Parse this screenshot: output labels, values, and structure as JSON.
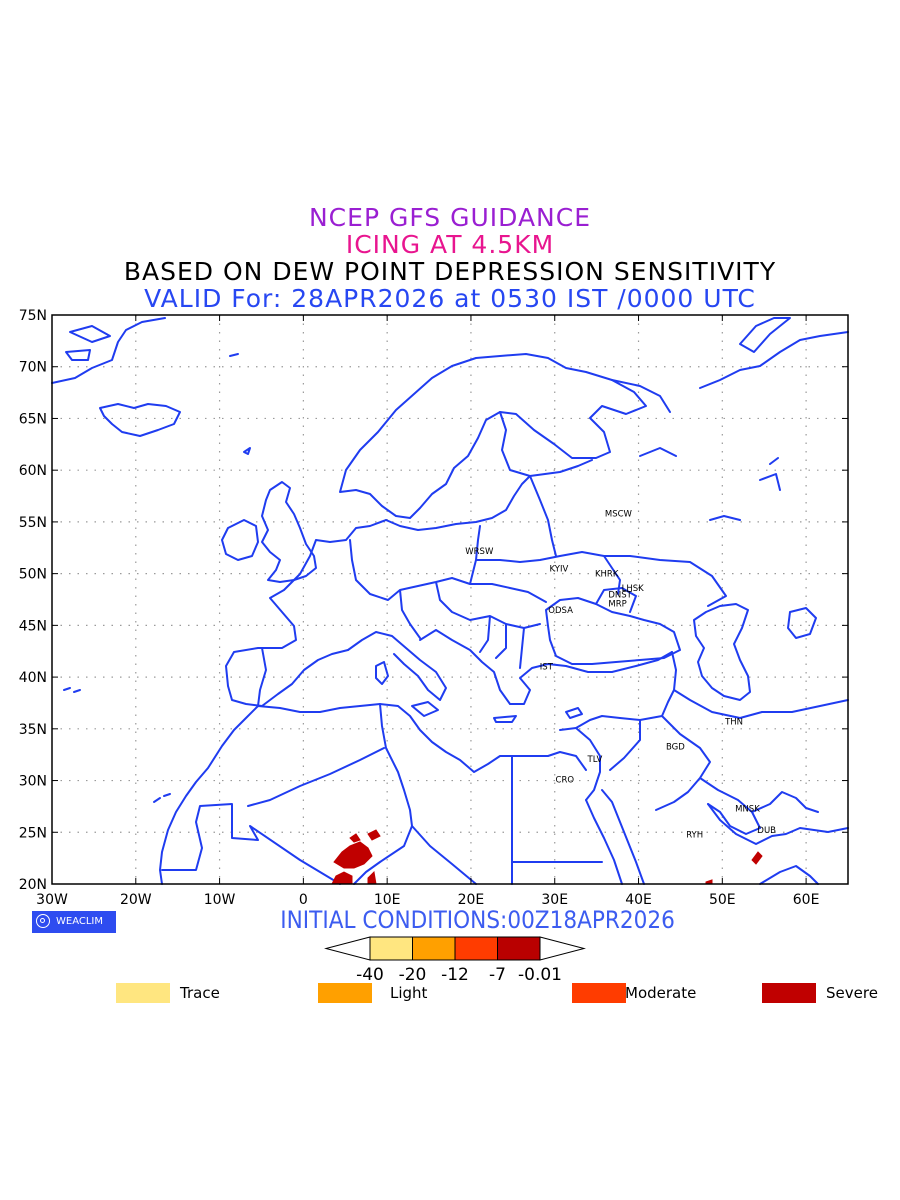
{
  "title": {
    "line1": "NCEP GFS GUIDANCE",
    "line2": "ICING AT 4.5KM",
    "line3": "BASED ON DEW POINT DEPRESSION SENSITIVITY",
    "line4": "VALID For: 28APR2026 at 0530 IST /0000 UTC"
  },
  "axes": {
    "lat_ticks": [
      "75N",
      "70N",
      "65N",
      "60N",
      "55N",
      "50N",
      "45N",
      "40N",
      "35N",
      "30N",
      "25N",
      "20N"
    ],
    "lon_ticks": [
      "30W",
      "20W",
      "10W",
      "0",
      "10E",
      "20E",
      "30E",
      "40E",
      "50E",
      "60E"
    ]
  },
  "stations": [
    {
      "code": "MSCW",
      "lon": 37.6,
      "lat": 55.8
    },
    {
      "code": "WRSW",
      "lon": 21.0,
      "lat": 52.2
    },
    {
      "code": "KYIV",
      "lon": 30.5,
      "lat": 50.5
    },
    {
      "code": "KHRK",
      "lon": 36.2,
      "lat": 50.0
    },
    {
      "code": "LHSK",
      "lon": 39.3,
      "lat": 48.6
    },
    {
      "code": "DNST",
      "lon": 37.8,
      "lat": 48.0
    },
    {
      "code": "MRP",
      "lon": 37.5,
      "lat": 47.1
    },
    {
      "code": "ODSA",
      "lon": 30.7,
      "lat": 46.5
    },
    {
      "code": "IST",
      "lon": 29.0,
      "lat": 41.0
    },
    {
      "code": "THN",
      "lon": 51.4,
      "lat": 35.7
    },
    {
      "code": "BGD",
      "lon": 44.4,
      "lat": 33.3
    },
    {
      "code": "TLV",
      "lon": 34.8,
      "lat": 32.1
    },
    {
      "code": "CRO",
      "lon": 31.2,
      "lat": 30.1
    },
    {
      "code": "MNSK",
      "lon": 53.0,
      "lat": 27.3
    },
    {
      "code": "RYH",
      "lon": 46.7,
      "lat": 24.8
    },
    {
      "code": "DUB",
      "lon": 55.3,
      "lat": 25.2
    }
  ],
  "badge": "WEACLIM",
  "initial_conditions": "INITIAL CONDITIONS:00Z18APR2026",
  "colorbar": {
    "ticks": [
      "-40",
      "-20",
      "-12",
      "-7",
      "-0.01"
    ],
    "colors": [
      "#ffe680",
      "#ffa000",
      "#ff3c00",
      "#b90000"
    ]
  },
  "legend": [
    {
      "label": "Trace",
      "color": "#ffe680"
    },
    {
      "label": "Light",
      "color": "#ffa000"
    },
    {
      "label": "Moderate",
      "color": "#ff3c00"
    },
    {
      "label": "Severe",
      "color": "#c00000"
    }
  ],
  "colors": {
    "coastline": "#1f3cf0",
    "frame": "#000000",
    "icing_severe": "#c00000"
  }
}
